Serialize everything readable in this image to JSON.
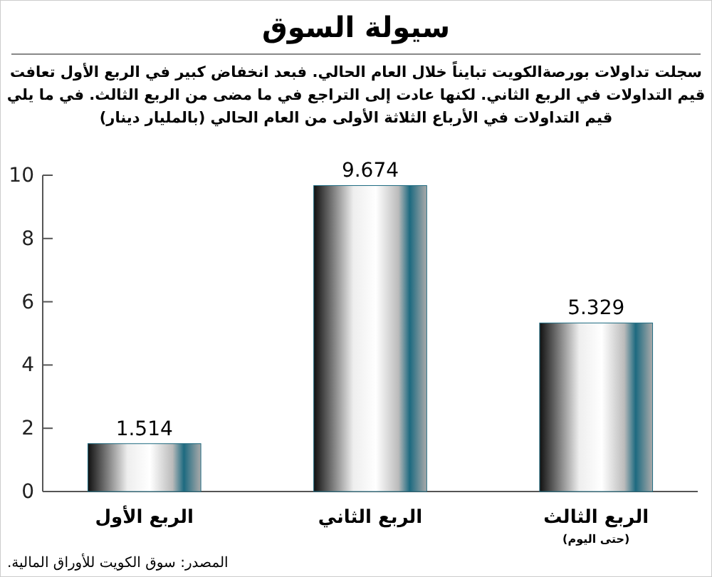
{
  "chart_data": {
    "type": "bar",
    "title": "سيولة السوق",
    "subtitle": "سجلت تداولات بورصةالكويت تبايناً خلال العام الحالي. فبعد انخفاض كبير في الربع الأول تعافت\nقيم التداولات في الربع الثاني. لكنها عادت إلى التراجع في ما مضى من الربع الثالث. في ما يلي\nقيم التداولات  في الأرباع الثلاثة الأولى من العام الحالي (بالمليار دينار)",
    "categories": [
      "الربع الأول",
      "الربع الثاني",
      "الربع الثالث\n(حتى اليوم)"
    ],
    "values": [
      1.514,
      9.674,
      5.329
    ],
    "color": "#1d6a80",
    "data_labels": true,
    "ylim": [
      0,
      10
    ],
    "yticks": [
      0,
      2,
      4,
      6,
      8,
      10
    ],
    "annotations": [
      "المصدر: سوق الكويت للأوراق المالية."
    ]
  }
}
